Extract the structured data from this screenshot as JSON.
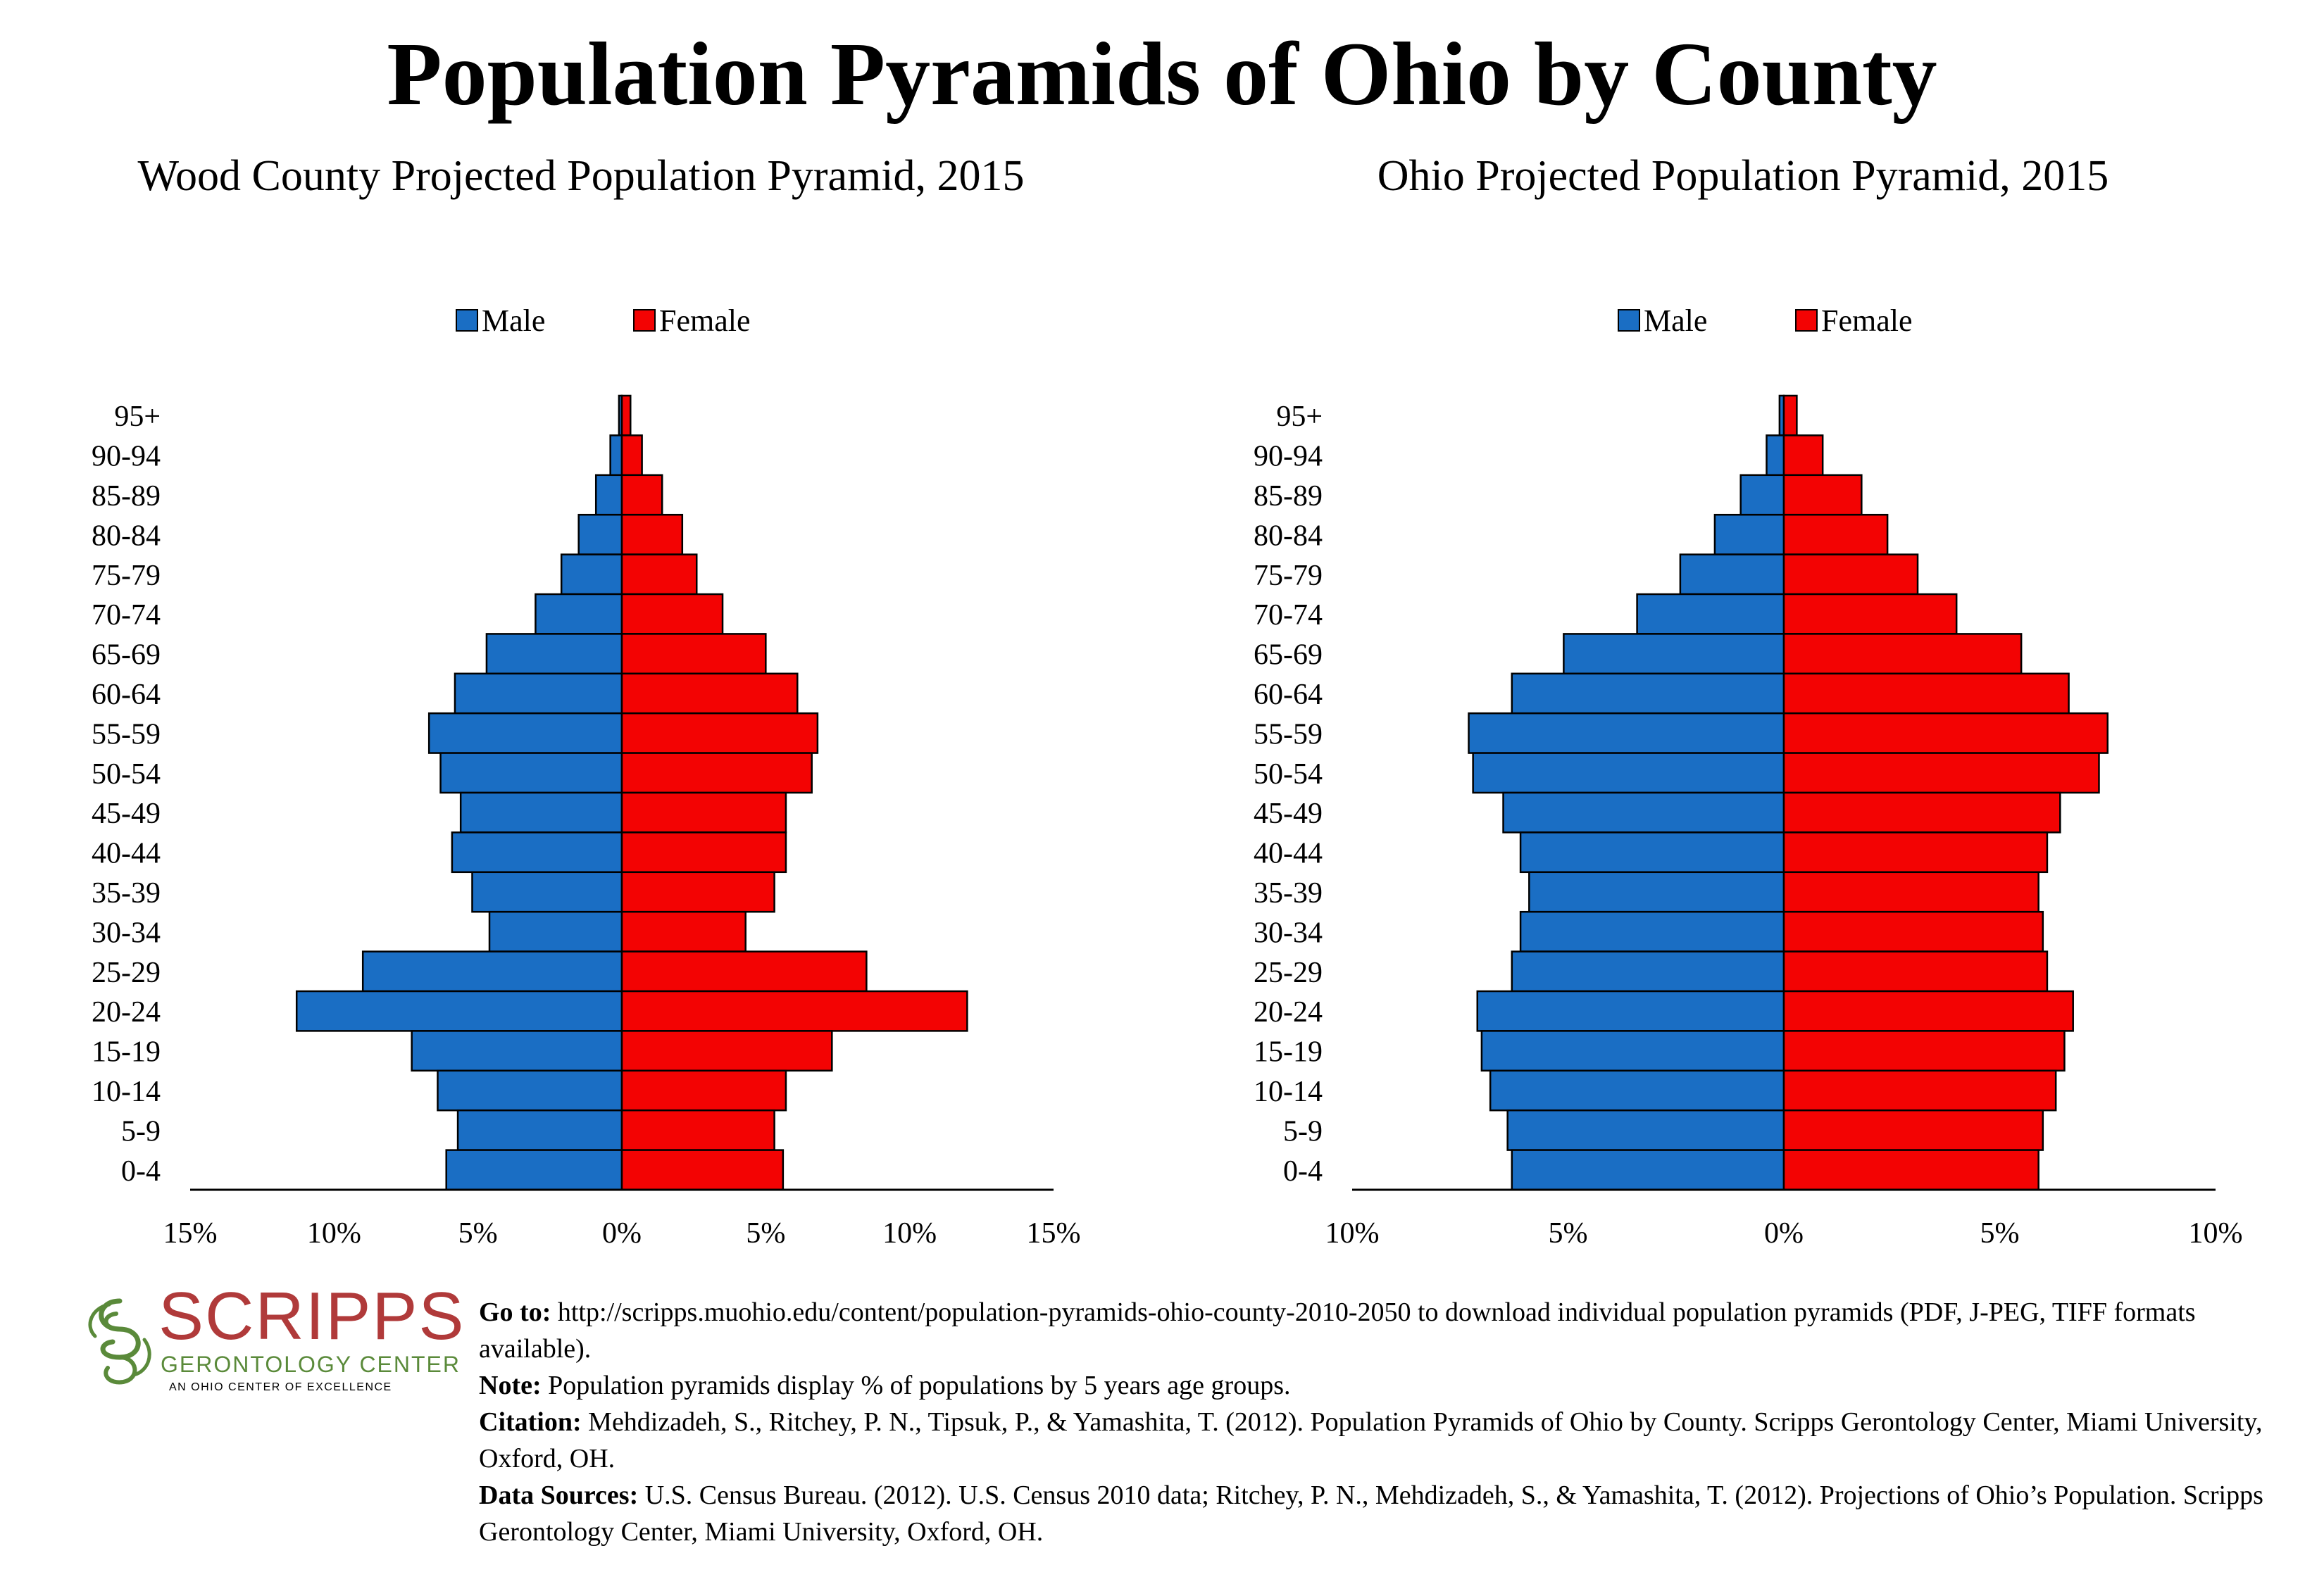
{
  "title": "Population Pyramids of Ohio by County",
  "colors": {
    "male": "#1a6ec4",
    "female": "#f30303",
    "axis": "#000000"
  },
  "legend": {
    "male": "Male",
    "female": "Female"
  },
  "chart_data": [
    {
      "type": "bar",
      "orientation": "horizontal-pyramid",
      "title": "Wood County Projected Population Pyramid, 2015",
      "categories": [
        "95+",
        "90-94",
        "85-89",
        "80-84",
        "75-79",
        "70-74",
        "65-69",
        "60-64",
        "55-59",
        "50-54",
        "45-49",
        "40-44",
        "35-39",
        "30-34",
        "25-29",
        "20-24",
        "15-19",
        "10-14",
        "5-9",
        "0-4"
      ],
      "series": [
        {
          "name": "Male",
          "values": [
            0.1,
            0.4,
            0.9,
            1.5,
            2.1,
            3.0,
            4.7,
            5.8,
            6.7,
            6.3,
            5.6,
            5.9,
            5.2,
            4.6,
            9.0,
            11.3,
            7.3,
            6.4,
            5.7,
            6.1
          ]
        },
        {
          "name": "Female",
          "values": [
            0.3,
            0.7,
            1.4,
            2.1,
            2.6,
            3.5,
            5.0,
            6.1,
            6.8,
            6.6,
            5.7,
            5.7,
            5.3,
            4.3,
            8.5,
            12.0,
            7.3,
            5.7,
            5.3,
            5.6
          ]
        }
      ],
      "xlim": [
        -15,
        15
      ],
      "xticks": [
        "15%",
        "10%",
        "5%",
        "0%",
        "5%",
        "10%",
        "15%"
      ],
      "legend_position": "top-center"
    },
    {
      "type": "bar",
      "orientation": "horizontal-pyramid",
      "title": "Ohio Projected Population Pyramid, 2015",
      "categories": [
        "95+",
        "90-94",
        "85-89",
        "80-84",
        "75-79",
        "70-74",
        "65-69",
        "60-64",
        "55-59",
        "50-54",
        "45-49",
        "40-44",
        "35-39",
        "30-34",
        "25-29",
        "20-24",
        "15-19",
        "10-14",
        "5-9",
        "0-4"
      ],
      "series": [
        {
          "name": "Male",
          "values": [
            0.1,
            0.4,
            1.0,
            1.6,
            2.4,
            3.4,
            5.1,
            6.3,
            7.3,
            7.2,
            6.5,
            6.1,
            5.9,
            6.1,
            6.3,
            7.1,
            7.0,
            6.8,
            6.4,
            6.3
          ]
        },
        {
          "name": "Female",
          "values": [
            0.3,
            0.9,
            1.8,
            2.4,
            3.1,
            4.0,
            5.5,
            6.6,
            7.5,
            7.3,
            6.4,
            6.1,
            5.9,
            6.0,
            6.1,
            6.7,
            6.5,
            6.3,
            6.0,
            5.9
          ]
        }
      ],
      "xlim": [
        -10,
        10
      ],
      "xticks": [
        "10%",
        "5%",
        "0%",
        "5%",
        "10%"
      ],
      "legend_position": "top-center"
    }
  ],
  "logo": {
    "name": "SCRIPPS",
    "subtitle": "GERONTOLOGY CENTER",
    "tagline": "AN OHIO CENTER OF EXCELLENCE"
  },
  "footer": {
    "goto_label": "Go to:",
    "goto_text": " http://scripps.muohio.edu/content/population-pyramids-ohio-county-2010-2050 to download individual population pyramids (PDF, J-PEG, TIFF formats available).",
    "note_label": "Note:",
    "note_text": " Population pyramids display % of populations by 5 years age groups.",
    "citation_label": "Citation:",
    "citation_text": " Mehdizadeh, S., Ritchey, P. N., Tipsuk, P., & Yamashita, T. (2012). Population Pyramids of Ohio by County. Scripps Gerontology Center, Miami University, Oxford, OH.",
    "sources_label": "Data Sources:",
    "sources_text": " U.S. Census Bureau. (2012). U.S. Census 2010 data; Ritchey, P. N., Mehdizadeh, S., & Yamashita, T. (2012). Projections of Ohio’s Population. Scripps Gerontology Center, Miami University, Oxford, OH."
  }
}
